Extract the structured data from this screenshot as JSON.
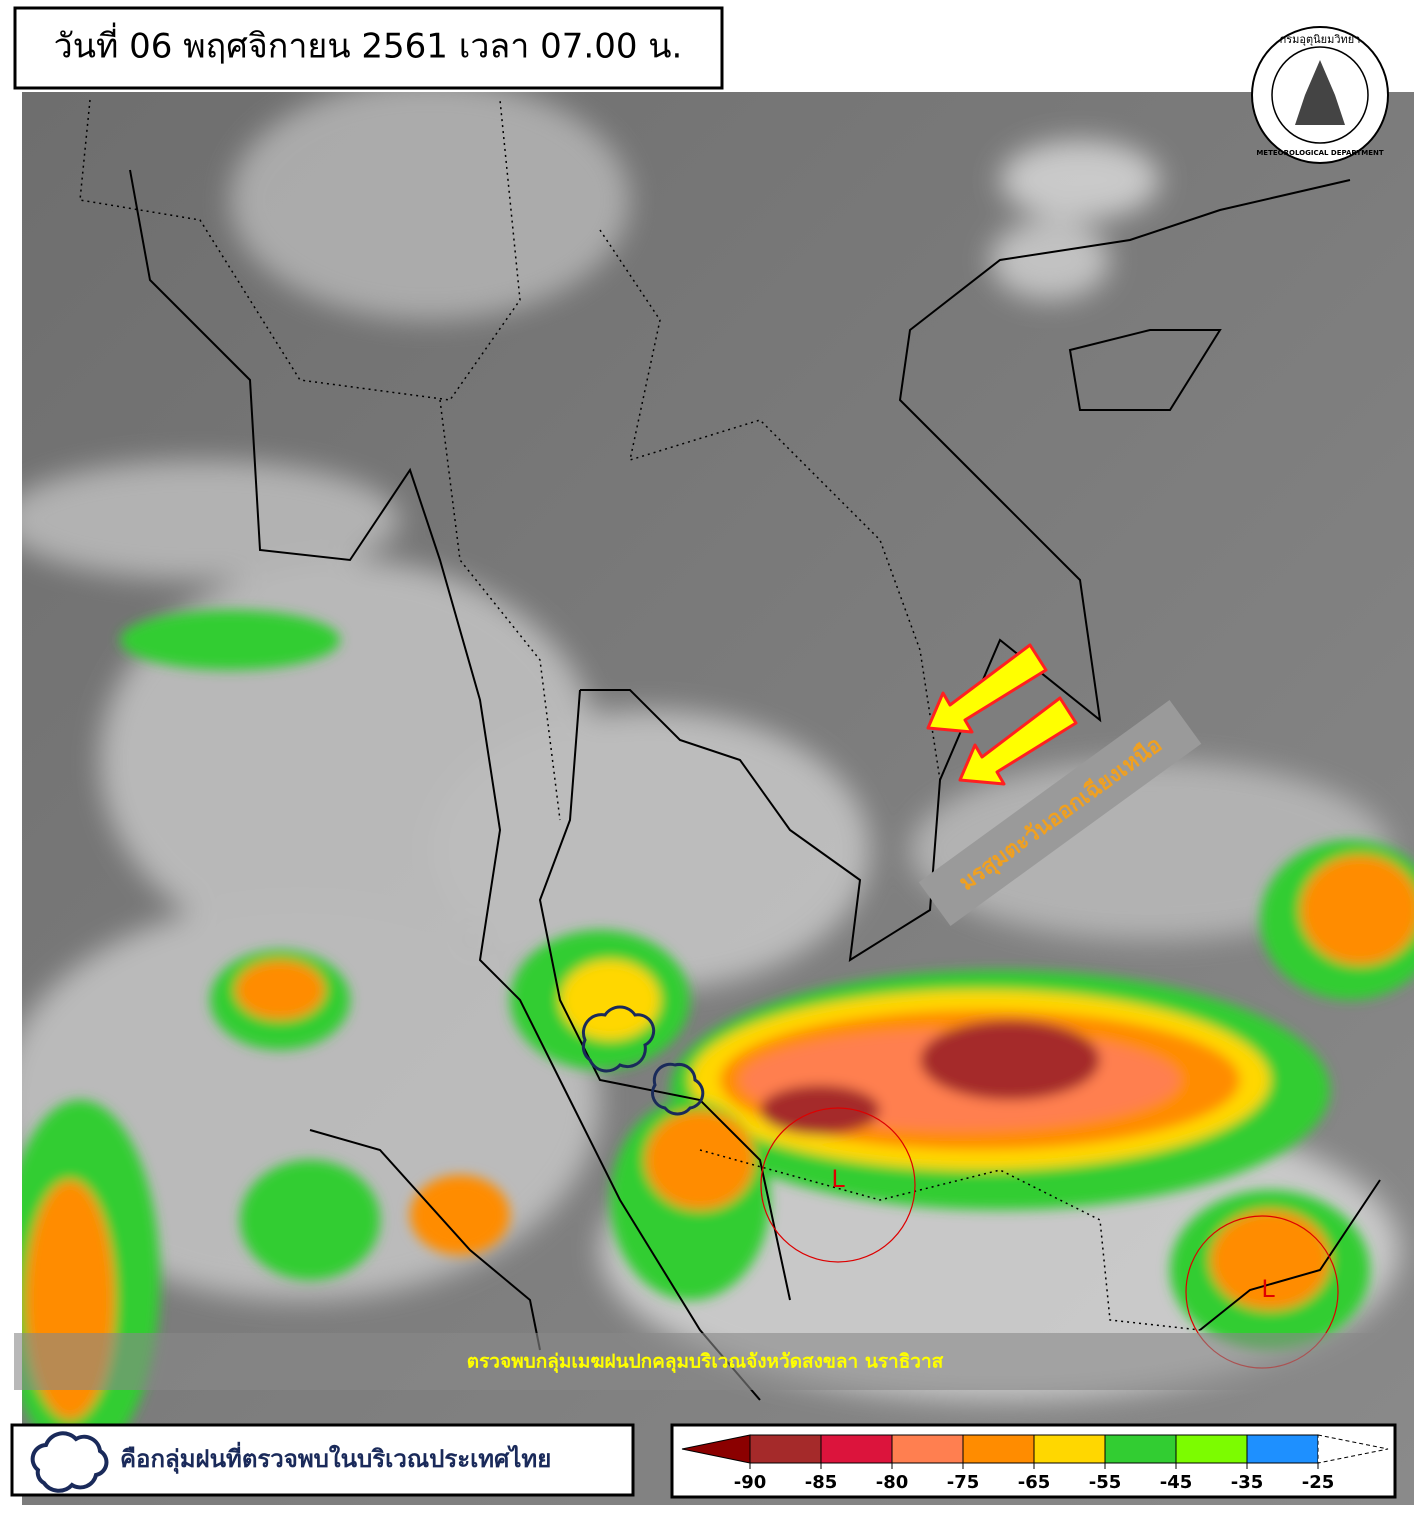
{
  "header": {
    "title": "วันที่ 06 พฤศจิกายน 2561 เวลา 07.00 น."
  },
  "logo": {
    "thai": "กรมอุตุนิยมวิทยา",
    "english": "METEOROLOGICAL DEPARTMENT"
  },
  "annotations": {
    "monsoon": "มรสุมตะวันออกเฉียงเหนือ",
    "low_1": "L",
    "low_2": "L",
    "caption": "ตรวจพบกลุ่มเมฆฝนปกคลุมบริเวณจังหวัดสงขลา นราธิวาส"
  },
  "legend": {
    "text": "คือกลุ่มฝนที่ตรวจพบในบริเวณประเทศไทย"
  },
  "colorbar": {
    "labels": [
      "-90",
      "-85",
      "-80",
      "-75",
      "-65",
      "-55",
      "-45",
      "-35",
      "-25"
    ],
    "colors": [
      "#8b0000",
      "#a52a2a",
      "#dc143c",
      "#ff7f50",
      "#ff8c00",
      "#ffd700",
      "#32cd32",
      "#7cfc00",
      "#1e90ff"
    ]
  }
}
